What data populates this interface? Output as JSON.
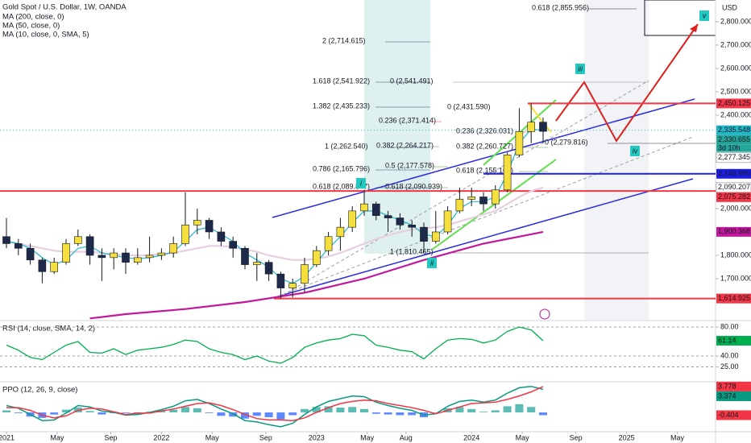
{
  "chart_data": [
    {
      "type": "candlestick",
      "title": "Gold Spot / U.S. Dollar, 1W, OANDA",
      "y_axis_label": "USD",
      "x": [
        0,
        4,
        8,
        12,
        16,
        20,
        24,
        28,
        32,
        36,
        40,
        44,
        48,
        52,
        56,
        60,
        64,
        68,
        72,
        76,
        80,
        84,
        88,
        92,
        96,
        100,
        104,
        108,
        112,
        116,
        120,
        124,
        128,
        132,
        136,
        140,
        144,
        148,
        152,
        156,
        160,
        164,
        168,
        172,
        176,
        180
      ],
      "open": [
        1880,
        1850,
        1830,
        1780,
        1730,
        1770,
        1850,
        1880,
        1800,
        1790,
        1810,
        1770,
        1790,
        1800,
        1810,
        1850,
        1930,
        1950,
        1900,
        1860,
        1830,
        1760,
        1770,
        1720,
        1660,
        1680,
        1760,
        1820,
        1880,
        1920,
        1990,
        2020,
        1970,
        1960,
        1930,
        1920,
        1860,
        1900,
        1990,
        2040,
        2050,
        2020,
        2080,
        2230,
        2330,
        2370
      ],
      "high": [
        1960,
        1870,
        1850,
        1790,
        1790,
        1870,
        1910,
        1890,
        1830,
        1830,
        1830,
        1830,
        1880,
        1830,
        1880,
        2070,
        2000,
        1960,
        1920,
        1880,
        1840,
        1810,
        1780,
        1730,
        1700,
        1790,
        1840,
        1900,
        1960,
        2010,
        2080,
        2030,
        1990,
        1980,
        1950,
        1940,
        1990,
        2010,
        2090,
        2090,
        2070,
        2100,
        2240,
        2430,
        2450,
        2390
      ],
      "low": [
        1830,
        1800,
        1760,
        1680,
        1720,
        1760,
        1840,
        1760,
        1690,
        1740,
        1720,
        1760,
        1770,
        1780,
        1790,
        1840,
        1890,
        1870,
        1840,
        1790,
        1740,
        1690,
        1690,
        1615,
        1620,
        1640,
        1750,
        1800,
        1820,
        1900,
        1970,
        1950,
        1900,
        1910,
        1880,
        1810,
        1850,
        1890,
        1980,
        2010,
        1990,
        2000,
        2070,
        2220,
        2280,
        2280
      ],
      "close": [
        1850,
        1830,
        1780,
        1730,
        1770,
        1850,
        1880,
        1800,
        1790,
        1810,
        1770,
        1790,
        1800,
        1810,
        1850,
        1930,
        1950,
        1900,
        1860,
        1830,
        1760,
        1770,
        1720,
        1660,
        1680,
        1760,
        1820,
        1880,
        1920,
        1990,
        2020,
        1970,
        1960,
        1930,
        1920,
        1860,
        1900,
        1990,
        2040,
        2050,
        2020,
        2080,
        2230,
        2330,
        2370,
        2330.655
      ],
      "up_color": "#f5df3c",
      "down_color": "#1e2a4a",
      "series": [
        {
          "name": "MA (200, close, 0)",
          "color": "#c2189b",
          "x": [
            28,
            40,
            60,
            80,
            100,
            120,
            140,
            160,
            180
          ],
          "values": [
            1530,
            1548,
            1570,
            1600,
            1640,
            1700,
            1780,
            1850,
            1900.368
          ]
        },
        {
          "name": "MA (50, close, 0)",
          "color": "#e6cfe0",
          "x": [
            0,
            4,
            8,
            12,
            16,
            20,
            24,
            28,
            32,
            36,
            40,
            44,
            48,
            52,
            56,
            60,
            64,
            68,
            72,
            76,
            80,
            84,
            88,
            92,
            96,
            100,
            104,
            108,
            112,
            116,
            120,
            124,
            128,
            132,
            136,
            140,
            144,
            148,
            152,
            156,
            160,
            164,
            168,
            172,
            176,
            180
          ],
          "values": [
            1860,
            1850,
            1840,
            1830,
            1820,
            1815,
            1815,
            1815,
            1810,
            1805,
            1800,
            1800,
            1800,
            1805,
            1810,
            1820,
            1830,
            1840,
            1840,
            1835,
            1825,
            1815,
            1800,
            1790,
            1780,
            1780,
            1785,
            1795,
            1810,
            1830,
            1850,
            1870,
            1885,
            1900,
            1910,
            1915,
            1920,
            1930,
            1945,
            1960,
            1975,
            1990,
            2020,
            2050,
            2075,
            2090.207
          ]
        },
        {
          "name": "MA (10, close, 0, SMA, 5)",
          "color": "#22b8c9",
          "x": [
            0,
            4,
            8,
            12,
            16,
            20,
            24,
            28,
            32,
            36,
            40,
            44,
            48,
            52,
            56,
            60,
            64,
            68,
            72,
            76,
            80,
            84,
            88,
            92,
            96,
            100,
            104,
            108,
            112,
            116,
            120,
            124,
            128,
            132,
            136,
            140,
            144,
            148,
            152,
            156,
            160,
            164,
            168,
            172,
            176,
            180
          ],
          "values": [
            1860,
            1850,
            1830,
            1790,
            1760,
            1780,
            1830,
            1840,
            1810,
            1800,
            1790,
            1785,
            1790,
            1800,
            1815,
            1860,
            1910,
            1920,
            1890,
            1860,
            1810,
            1780,
            1750,
            1700,
            1680,
            1710,
            1770,
            1830,
            1880,
            1940,
            1990,
            1990,
            1970,
            1950,
            1930,
            1890,
            1880,
            1930,
            2000,
            2030,
            2030,
            2050,
            2150,
            2280,
            2340,
            2335.548
          ]
        }
      ],
      "xlim": [
        -2.16,
        237.84
      ],
      "ylim": [
        1524,
        2893
      ],
      "yticks": [
        {
          "value": 2800,
          "label": "2,800.000"
        },
        {
          "value": 2700,
          "label": "2,700.000"
        },
        {
          "value": 2600,
          "label": "2,600.000"
        },
        {
          "value": 2500,
          "label": "2,500.000"
        },
        {
          "value": 2400,
          "label": "2,400.000"
        },
        {
          "value": 2000,
          "label": "2,000.000"
        },
        {
          "value": 1800,
          "label": "1,800.000"
        },
        {
          "value": 1700,
          "label": "1,700.000"
        }
      ],
      "price_labels": [
        {
          "value": 2450.125,
          "label": "2,450.125",
          "color": "#f23645"
        },
        {
          "value": 2335.548,
          "label": "2,335.548",
          "color": "#22b8c9"
        },
        {
          "value": 2330.655,
          "label": "2,330.655",
          "color": "#26a69a",
          "countdown": "3d 10h"
        },
        {
          "value": 2277.345,
          "label": "2,277.345",
          "color": "#ffffff"
        },
        {
          "value": 2148.99,
          "label": "2,148.990",
          "color": "#1e1ee0"
        },
        {
          "value": 2090.207,
          "label": "2,090.207",
          "color": "#ffffff"
        },
        {
          "value": 2075.282,
          "label": "2,075.282",
          "color": "#f23645"
        },
        {
          "value": 1900.368,
          "label": "1,900.368",
          "color": "#c2189b"
        },
        {
          "value": 1614.925,
          "label": "1,614.925",
          "color": "#f23645"
        }
      ],
      "annotations": [
        "0.618 (2,855.956)",
        "2 (2,714.615)",
        "1.618 (2,541.922)",
        "0 (2,541.491)",
        "1.382 (2,435.233)",
        "0 (2,431.590)",
        "0.236 (2,371.414)",
        "0.236 (2,326.031)",
        "0 (2,279.816)",
        "1 (2,262.540)",
        "0.382 (2,264.217)",
        "0.382 (2,260.727)",
        "0.786 (2,165.796)",
        "0.5 (2,177.578)",
        "0.618 (2,155.168)",
        "0.618 (2,089.847)",
        "0.618 (2,090.939)",
        "1 (1,810.465)"
      ],
      "wave_labels": [
        "i",
        "ii",
        "iii",
        "iv",
        "v"
      ]
    },
    {
      "type": "line",
      "title": "RSI (14, close, SMA, 14, 2)",
      "x": [
        0,
        4,
        8,
        12,
        16,
        20,
        24,
        28,
        32,
        36,
        40,
        44,
        48,
        52,
        56,
        60,
        64,
        68,
        72,
        76,
        80,
        84,
        88,
        92,
        96,
        100,
        104,
        108,
        112,
        116,
        120,
        124,
        128,
        132,
        136,
        140,
        144,
        148,
        152,
        156,
        160,
        164,
        168,
        172,
        176,
        180
      ],
      "values": [
        55,
        48,
        38,
        35,
        45,
        55,
        60,
        45,
        44,
        50,
        42,
        48,
        50,
        52,
        56,
        62,
        60,
        50,
        45,
        42,
        35,
        40,
        33,
        30,
        38,
        52,
        58,
        62,
        64,
        70,
        68,
        55,
        52,
        48,
        46,
        36,
        50,
        62,
        64,
        63,
        58,
        62,
        74,
        80,
        76,
        61.14
      ],
      "color": "#00b050",
      "xlim": [
        -2.16,
        237.84
      ],
      "ylim": [
        6.7,
        86.7
      ],
      "yticks": [
        {
          "value": 80,
          "label": "80.00"
        },
        {
          "value": 40,
          "label": "40.00"
        },
        {
          "value": 25,
          "label": "25.00"
        }
      ]
    },
    {
      "type": "ppo",
      "title": "PPO (12, 26, 9, close)",
      "x": [
        0,
        4,
        8,
        12,
        16,
        20,
        24,
        28,
        32,
        36,
        40,
        44,
        48,
        52,
        56,
        60,
        64,
        68,
        72,
        76,
        80,
        84,
        88,
        92,
        96,
        100,
        104,
        108,
        112,
        116,
        120,
        124,
        128,
        132,
        136,
        140,
        144,
        148,
        152,
        156,
        160,
        164,
        168,
        172,
        176,
        180
      ],
      "histogram": [
        0.3,
        -0.1,
        -0.6,
        -0.8,
        -0.3,
        0.4,
        0.7,
        0.2,
        -0.3,
        -0.1,
        -0.1,
        -0.2,
        0.1,
        0.2,
        0.4,
        0.8,
        0.6,
        -0.1,
        -0.5,
        -0.6,
        -0.9,
        -0.5,
        -0.7,
        -1.0,
        -0.4,
        0.5,
        0.8,
        0.9,
        0.7,
        0.8,
        0.5,
        -0.2,
        -0.3,
        -0.4,
        -0.4,
        -0.7,
        0.0,
        0.6,
        0.8,
        0.5,
        0.1,
        0.3,
        0.9,
        1.2,
        0.8,
        -0.404
      ],
      "histogram_colors": {
        "positive": "#26a69a",
        "negative": "#2962ff"
      },
      "series": [
        {
          "color": "#089981",
          "values": [
            1.0,
            0.6,
            -0.3,
            -1.2,
            -1.1,
            -0.1,
            1.0,
            0.8,
            0.2,
            0.0,
            -0.4,
            -0.3,
            0.0,
            0.4,
            0.9,
            1.7,
            1.9,
            1.3,
            0.5,
            -0.2,
            -1.2,
            -1.4,
            -1.8,
            -2.1,
            -1.6,
            -0.3,
            0.8,
            1.6,
            2.0,
            2.4,
            2.3,
            1.5,
            1.0,
            0.6,
            0.3,
            -0.4,
            -0.2,
            0.9,
            1.6,
            1.8,
            1.5,
            1.8,
            2.8,
            3.6,
            3.8,
            3.374
          ]
        },
        {
          "color": "#f23645",
          "values": [
            0.7,
            0.7,
            0.3,
            -0.4,
            -0.8,
            -0.5,
            0.3,
            0.6,
            0.5,
            0.1,
            -0.3,
            -0.1,
            -0.1,
            0.2,
            0.5,
            0.9,
            1.3,
            1.4,
            1.0,
            0.4,
            -0.3,
            -0.9,
            -1.1,
            -1.1,
            -1.2,
            -0.8,
            0.0,
            0.7,
            1.3,
            1.6,
            1.8,
            1.7,
            1.3,
            1.0,
            0.7,
            0.3,
            -0.2,
            0.3,
            0.8,
            1.3,
            1.4,
            1.5,
            1.9,
            2.4,
            3.0,
            3.778
          ]
        }
      ],
      "xlim": [
        -2.16,
        237.84
      ],
      "ylim": [
        -2.7,
        4.24
      ],
      "xticks": [
        {
          "value": 0,
          "label": "2021"
        },
        {
          "value": 17,
          "label": "May"
        },
        {
          "value": 35,
          "label": "Sep"
        },
        {
          "value": 52,
          "label": "2022"
        },
        {
          "value": 69,
          "label": "May"
        },
        {
          "value": 87,
          "label": "Sep"
        },
        {
          "value": 104,
          "label": "2023"
        },
        {
          "value": 121,
          "label": "May"
        },
        {
          "value": 134,
          "label": "Aug"
        },
        {
          "value": 156,
          "label": "2024"
        },
        {
          "value": 173,
          "label": "May"
        },
        {
          "value": 191,
          "label": "Sep"
        },
        {
          "value": 208,
          "label": "2025"
        },
        {
          "value": 225,
          "label": "May"
        }
      ]
    }
  ]
}
